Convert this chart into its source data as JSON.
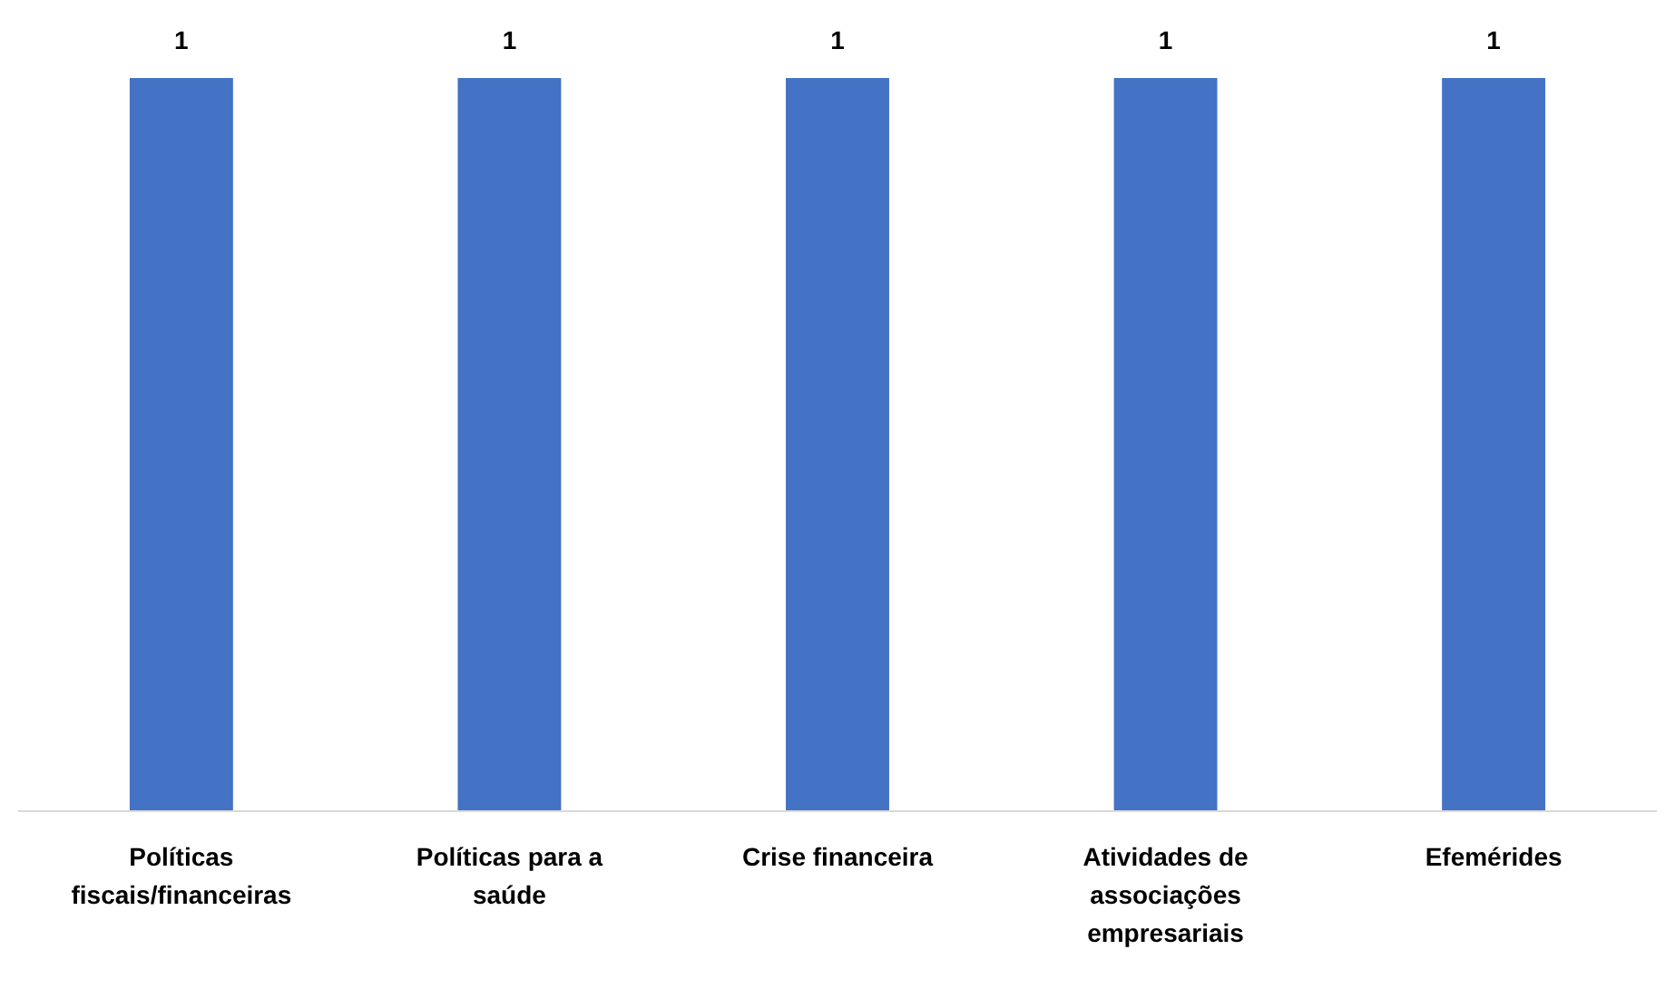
{
  "chart_data": {
    "type": "bar",
    "categories": [
      "Políticas fiscais/financeiras",
      "Políticas para a saúde",
      "Crise financeira",
      "Atividades de associações empresariais",
      "Efemérides"
    ],
    "values": [
      1,
      1,
      1,
      1,
      1
    ],
    "color": "#4472c4",
    "data_labels": true
  }
}
